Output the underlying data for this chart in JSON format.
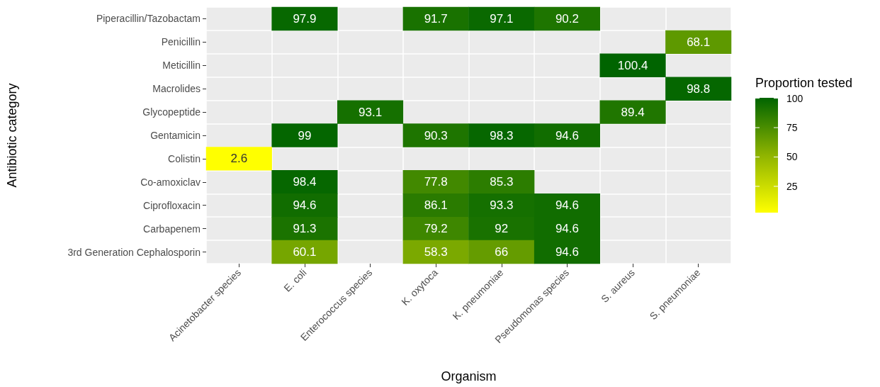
{
  "chart_data": {
    "type": "heatmap",
    "xlabel": "Organism",
    "ylabel": "Antibiotic category",
    "clabel": "Proportion tested",
    "categories": [
      "Acinetobacter species",
      "E. coli",
      "Enterococcus species",
      "K. oxytoca",
      "K. pneumoniae",
      "Pseudomonas species",
      "S. aureus",
      "S. pneumoniae"
    ],
    "y_categories": [
      "Piperacillin/Tazobactam",
      "Penicillin",
      "Meticillin",
      "Macrolides",
      "Glycopeptide",
      "Gentamicin",
      "Colistin",
      "Co-amoxiclav",
      "Ciprofloxacin",
      "Carbapenem",
      "3rd Generation Cephalosporin"
    ],
    "cells": [
      [
        null,
        97.9,
        null,
        91.7,
        97.1,
        90.2,
        null,
        null
      ],
      [
        null,
        null,
        null,
        null,
        null,
        null,
        null,
        68.1
      ],
      [
        null,
        null,
        null,
        null,
        null,
        null,
        100.4,
        null
      ],
      [
        null,
        null,
        null,
        null,
        null,
        null,
        null,
        98.8
      ],
      [
        null,
        null,
        93.1,
        null,
        null,
        null,
        89.4,
        null
      ],
      [
        null,
        99,
        null,
        90.3,
        98.3,
        94.6,
        null,
        null
      ],
      [
        2.6,
        null,
        null,
        null,
        null,
        null,
        null,
        null
      ],
      [
        null,
        98.4,
        null,
        77.8,
        85.3,
        null,
        null,
        null
      ],
      [
        null,
        94.6,
        null,
        86.1,
        93.3,
        94.6,
        null,
        null
      ],
      [
        null,
        91.3,
        null,
        79.2,
        92,
        94.6,
        null,
        null
      ],
      [
        null,
        60.1,
        null,
        58.3,
        66,
        94.6,
        null,
        null
      ]
    ],
    "clim": [
      2.6,
      100.4
    ],
    "cticks": [
      25,
      50,
      75,
      100
    ],
    "data_labels": true,
    "grid": true
  }
}
